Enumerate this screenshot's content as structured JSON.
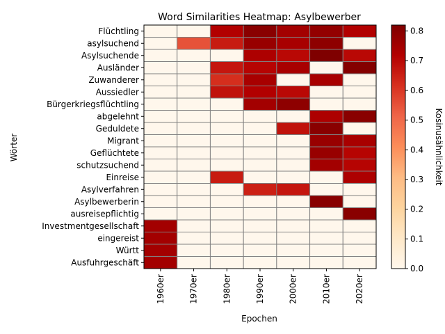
{
  "chart_data": {
    "type": "heatmap",
    "title": "Word Similarities Heatmap: Asylbewerber",
    "xlabel": "Epochen",
    "ylabel": "Wörter",
    "colorbar_label": "Kosinusähnlichkeit",
    "colormap": "OrRd",
    "value_range": [
      0,
      0.82
    ],
    "colorbar_ticks": [
      "0.0",
      "0.1",
      "0.2",
      "0.3",
      "0.4",
      "0.5",
      "0.6",
      "0.7",
      "0.8"
    ],
    "grid_color": "#808080",
    "x_categories": [
      "1960er",
      "1970er",
      "1980er",
      "1990er",
      "2000er",
      "2010er",
      "2020er"
    ],
    "y_categories": [
      "Flüchtling",
      "asylsuchend",
      "Asylsuchende",
      "Ausländer",
      "Zuwanderer",
      "Aussiedler",
      "Bürgerkriegsflüchtling",
      "abgelehnt",
      "Geduldete",
      "Migrant",
      "Geflüchtete",
      "schutzsuchend",
      "Einreise",
      "Asylverfahren",
      "Asylbewerberin",
      "ausreisepflichtig",
      "Investmentgesellschaft",
      "eingereist",
      "Württ",
      "Ausfuhrgeschäft"
    ],
    "values": [
      [
        0.0,
        0.0,
        0.72,
        0.8,
        0.75,
        0.78,
        0.72
      ],
      [
        0.0,
        0.55,
        0.66,
        0.77,
        0.74,
        0.79,
        0.0
      ],
      [
        0.0,
        0.0,
        0.0,
        0.73,
        0.7,
        0.82,
        0.7
      ],
      [
        0.0,
        0.0,
        0.67,
        0.71,
        0.74,
        0.0,
        0.81
      ],
      [
        0.0,
        0.0,
        0.62,
        0.74,
        0.0,
        0.74,
        0.0
      ],
      [
        0.0,
        0.0,
        0.68,
        0.72,
        0.7,
        0.0,
        0.0
      ],
      [
        0.0,
        0.0,
        0.0,
        0.75,
        0.79,
        0.0,
        0.0
      ],
      [
        0.0,
        0.0,
        0.0,
        0.0,
        0.0,
        0.73,
        0.8
      ],
      [
        0.0,
        0.0,
        0.0,
        0.0,
        0.68,
        0.8,
        0.0
      ],
      [
        0.0,
        0.0,
        0.0,
        0.0,
        0.0,
        0.77,
        0.74
      ],
      [
        0.0,
        0.0,
        0.0,
        0.0,
        0.0,
        0.77,
        0.71
      ],
      [
        0.0,
        0.0,
        0.0,
        0.0,
        0.0,
        0.75,
        0.71
      ],
      [
        0.0,
        0.0,
        0.66,
        0.0,
        0.0,
        0.0,
        0.73
      ],
      [
        0.0,
        0.0,
        0.0,
        0.65,
        0.67,
        0.0,
        0.0
      ],
      [
        0.0,
        0.0,
        0.0,
        0.0,
        0.0,
        0.8,
        0.0
      ],
      [
        0.0,
        0.0,
        0.0,
        0.0,
        0.0,
        0.0,
        0.8
      ],
      [
        0.75,
        0.0,
        0.0,
        0.0,
        0.0,
        0.0,
        0.0
      ],
      [
        0.75,
        0.0,
        0.0,
        0.0,
        0.0,
        0.0,
        0.0
      ],
      [
        0.75,
        0.0,
        0.0,
        0.0,
        0.0,
        0.0,
        0.0
      ],
      [
        0.75,
        0.0,
        0.0,
        0.0,
        0.0,
        0.0,
        0.0
      ]
    ]
  }
}
